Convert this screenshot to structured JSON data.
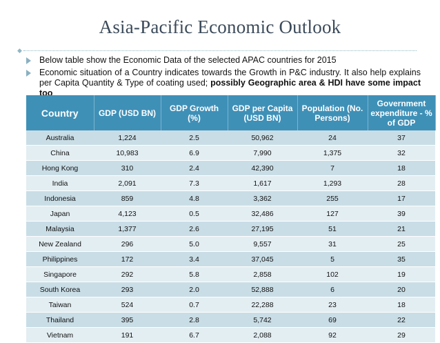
{
  "title": "Asia-Pacific Economic Outlook",
  "bullets": [
    "Below table show the Economic Data of the selected APAC countries for 2015",
    "Economic situation of a Country indicates towards the Growth in P&C industry. It also help explains per Capita Quantity & Type of coating used; ",
    "possibly Geographic area & HDI have some impact too"
  ],
  "table": {
    "headers": [
      "Country",
      "GDP (USD BN)",
      "GDP Growth (%)",
      "GDP per Capita (USD BN)",
      "Population (No. Persons)",
      "Government expenditure - % of GDP"
    ],
    "rows": [
      [
        "Australia",
        "1,224",
        "2.5",
        "50,962",
        "24",
        "37"
      ],
      [
        "China",
        "10,983",
        "6.9",
        "7,990",
        "1,375",
        "32"
      ],
      [
        "Hong Kong",
        "310",
        "2.4",
        "42,390",
        "7",
        "18"
      ],
      [
        "India",
        "2,091",
        "7.3",
        "1,617",
        "1,293",
        "28"
      ],
      [
        "Indonesia",
        "859",
        "4.8",
        "3,362",
        "255",
        "17"
      ],
      [
        "Japan",
        "4,123",
        "0.5",
        "32,486",
        "127",
        "39"
      ],
      [
        "Malaysia",
        "1,377",
        "2.6",
        "27,195",
        "51",
        "21"
      ],
      [
        "New Zealand",
        "296",
        "5.0",
        "9,557",
        "31",
        "25"
      ],
      [
        "Philippines",
        "172",
        "3.4",
        "37,045",
        "5",
        "35"
      ],
      [
        "Singapore",
        "292",
        "5.8",
        "2,858",
        "102",
        "19"
      ],
      [
        "South Korea",
        "293",
        "2.0",
        "52,888",
        "6",
        "20"
      ],
      [
        "Taiwan",
        "524",
        "0.7",
        "22,288",
        "23",
        "18"
      ],
      [
        "Thailand",
        "395",
        "2.8",
        "5,742",
        "69",
        "22"
      ],
      [
        "Vietnam",
        "191",
        "6.7",
        "2,088",
        "92",
        "29"
      ]
    ]
  },
  "colors": {
    "header_bg": "#3f90b7",
    "row_odd": "#c9dde6",
    "row_even": "#e3eef3",
    "title": "#3b4a5a",
    "bullet_arrow": "#8ab1c2"
  }
}
